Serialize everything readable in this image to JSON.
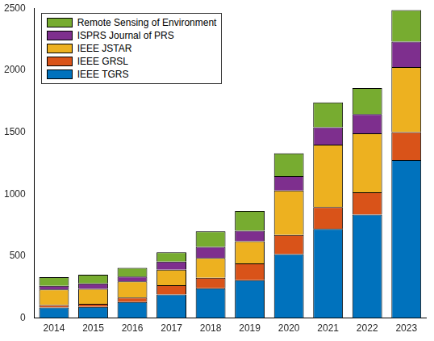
{
  "chart_data": {
    "type": "bar",
    "stacked": true,
    "grid": false,
    "legend": "upper left",
    "categories": [
      "2014",
      "2015",
      "2016",
      "2017",
      "2018",
      "2019",
      "2020",
      "2021",
      "2022",
      "2023"
    ],
    "ylim": [
      0,
      2500
    ],
    "yticks": [
      0,
      500,
      1000,
      1500,
      2000,
      2500
    ],
    "series": [
      {
        "name": "IEEE TGRS",
        "color": "#0072BD",
        "values": [
          85,
          90,
          130,
          190,
          240,
          305,
          515,
          720,
          835,
          1275
        ]
      },
      {
        "name": "IEEE GRSL",
        "color": "#D95319",
        "values": [
          20,
          25,
          35,
          75,
          85,
          135,
          155,
          175,
          180,
          225
        ]
      },
      {
        "name": "IEEE JSTAR",
        "color": "#EDB120",
        "values": [
          125,
          120,
          130,
          125,
          160,
          180,
          360,
          505,
          475,
          525
        ]
      },
      {
        "name": "ISPRS Journal of PRS",
        "color": "#7E2F8E",
        "values": [
          30,
          45,
          40,
          65,
          90,
          85,
          115,
          140,
          155,
          205
        ]
      },
      {
        "name": "Remote Sensing of Environment",
        "color": "#77AC30",
        "values": [
          70,
          70,
          70,
          75,
          125,
          160,
          185,
          200,
          210,
          255
        ]
      }
    ]
  }
}
